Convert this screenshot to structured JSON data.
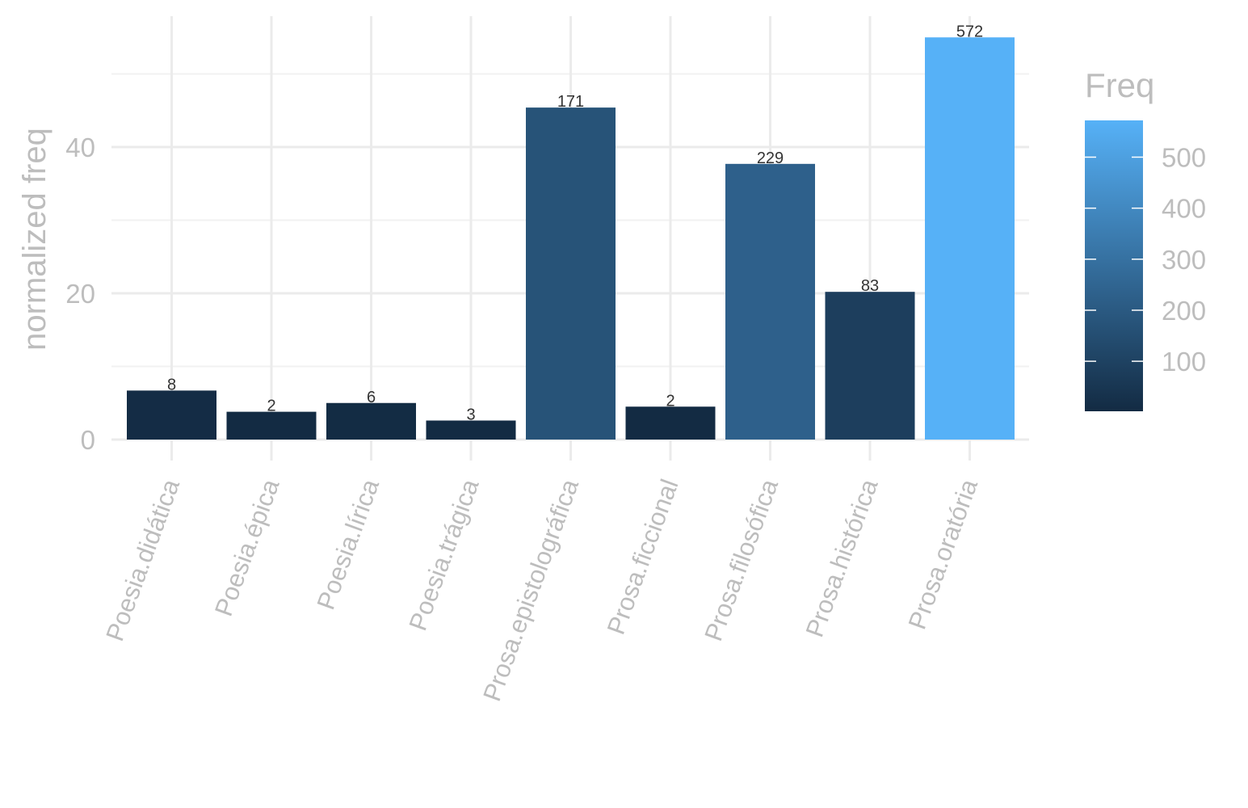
{
  "chart_data": {
    "type": "bar",
    "title": "",
    "xlabel": "",
    "ylabel": "normalized freq",
    "categories": [
      "Poesia.didática",
      "Poesia.épica",
      "Poesia.lírica",
      "Poesia.trágica",
      "Prosa.epistolográfica",
      "Prosa.ficcional",
      "Prosa.filosófica",
      "Prosa.histórica",
      "Prosa.oratória"
    ],
    "values": [
      6.7,
      3.8,
      5.0,
      2.6,
      45.4,
      4.5,
      37.7,
      20.2,
      55.0
    ],
    "freq": [
      8,
      2,
      6,
      3,
      171,
      2,
      229,
      83,
      572
    ],
    "data_labels": [
      "8",
      "2",
      "6",
      "3",
      "171",
      "2",
      "229",
      "83",
      "572"
    ],
    "ylim": [
      0,
      58
    ],
    "yticks": [
      0,
      20,
      40
    ],
    "grid": true,
    "legend": {
      "title": "Freq",
      "position": "right",
      "type": "gradient",
      "ticks": [
        100,
        200,
        300,
        400,
        500
      ],
      "range": [
        2,
        572
      ],
      "color_low": "#132b43",
      "color_high": "#56b1f7"
    }
  }
}
